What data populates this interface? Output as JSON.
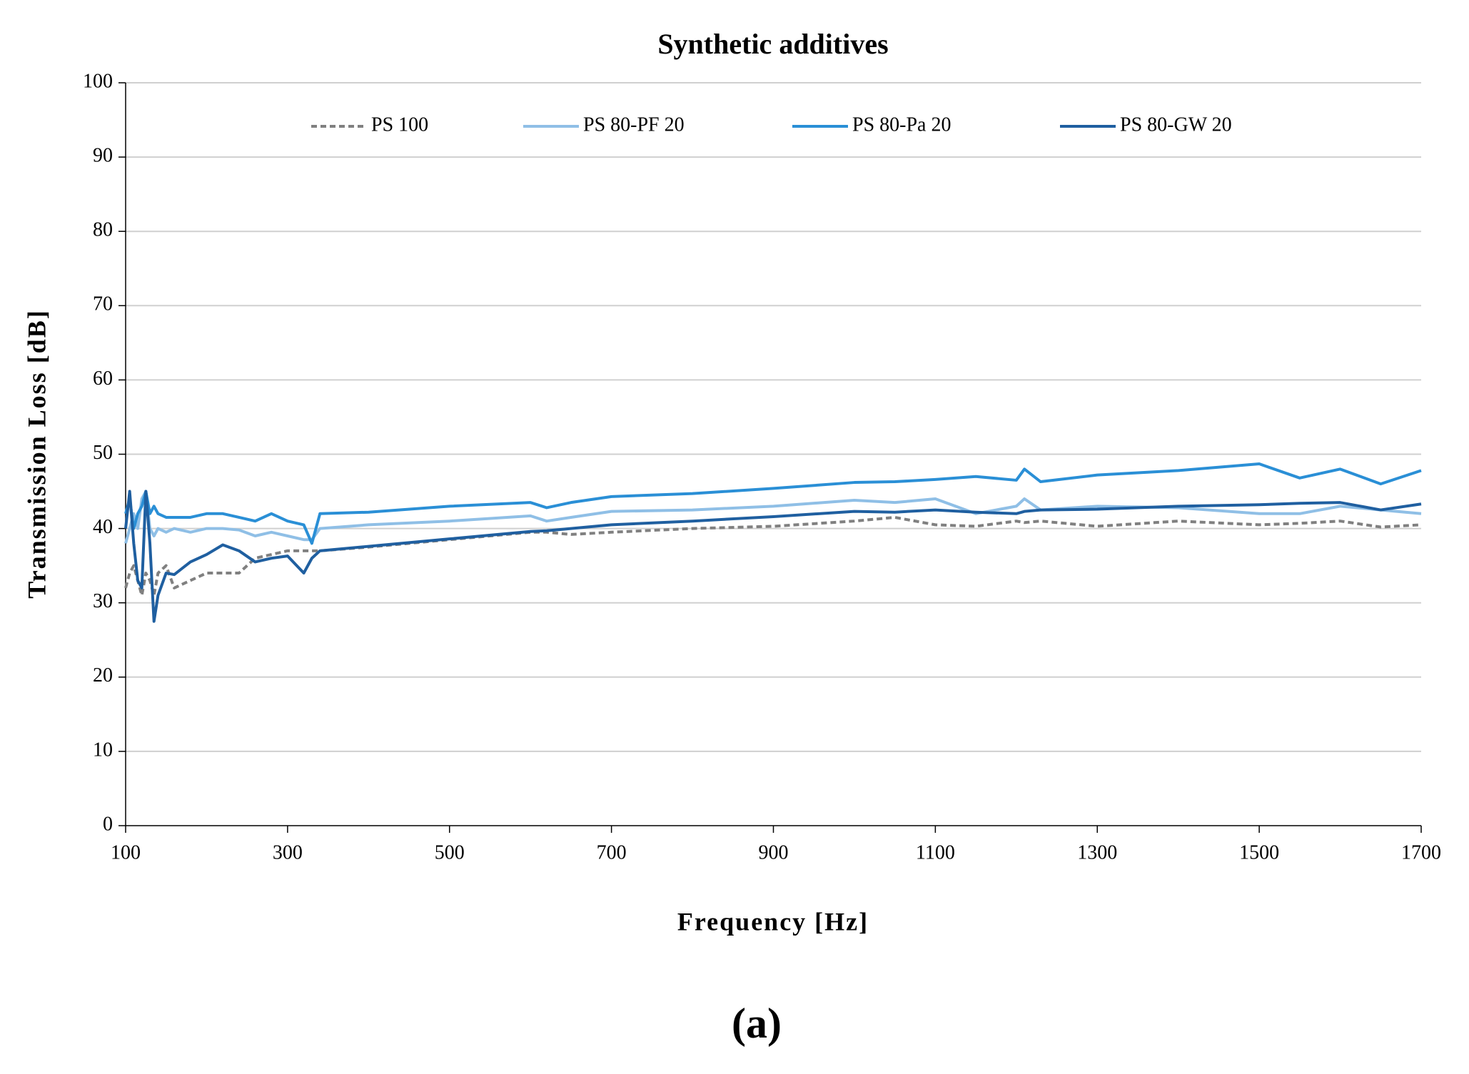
{
  "chart_data": {
    "type": "line",
    "title": "Synthetic additives",
    "x_label": "Frequency [Hz]",
    "y_label": "Transmission Loss [dB]",
    "panel_label": "(a)",
    "x": [
      100,
      105,
      110,
      115,
      120,
      125,
      130,
      135,
      140,
      150,
      160,
      180,
      200,
      220,
      240,
      260,
      280,
      300,
      320,
      330,
      340,
      400,
      500,
      600,
      620,
      650,
      700,
      800,
      900,
      1000,
      1050,
      1100,
      1150,
      1200,
      1210,
      1230,
      1300,
      1400,
      1500,
      1550,
      1600,
      1650,
      1700
    ],
    "series": [
      {
        "name": "PS 100",
        "color": "#808080",
        "dashed": true,
        "values": [
          32,
          34,
          35,
          33,
          31,
          34,
          33,
          31,
          34,
          35,
          32,
          33,
          34,
          34,
          34,
          36,
          36.5,
          37,
          37,
          37,
          37,
          37.5,
          38.5,
          39.5,
          39.5,
          39.2,
          39.5,
          40,
          40.3,
          41,
          41.5,
          40.5,
          40.3,
          41,
          40.8,
          41,
          40.3,
          41,
          40.5,
          40.7,
          41,
          40.2,
          40.5
        ]
      },
      {
        "name": "PS 80-PF 20",
        "color": "#8fbfe6",
        "dashed": false,
        "values": [
          38,
          40,
          42,
          40,
          44,
          45,
          40,
          39,
          40,
          39.5,
          40,
          39.5,
          40,
          40,
          39.8,
          39,
          39.5,
          39,
          38.5,
          38.5,
          40,
          40.5,
          41,
          41.7,
          41,
          41.5,
          42.3,
          42.5,
          43,
          43.8,
          43.5,
          44,
          42,
          43,
          44,
          42.5,
          43,
          42.8,
          42,
          42,
          43,
          42.5,
          42
        ]
      },
      {
        "name": "PS 80-Pa 20",
        "color": "#2a8fd6",
        "dashed": false,
        "values": [
          42,
          44,
          40,
          42,
          43,
          45,
          42,
          43,
          42,
          41.5,
          41.5,
          41.5,
          42,
          42,
          41.5,
          41,
          42,
          41,
          40.5,
          38,
          42,
          42.2,
          43,
          43.5,
          42.8,
          43.5,
          44.3,
          44.7,
          45.4,
          46.2,
          46.3,
          46.6,
          47,
          46.5,
          48,
          46.3,
          47.2,
          47.8,
          48.7,
          46.8,
          48,
          46,
          47.8
        ]
      },
      {
        "name": "PS 80-GW 20",
        "color": "#1f5fa0",
        "dashed": false,
        "values": [
          40,
          45,
          38,
          33,
          32,
          45,
          38,
          27.5,
          31,
          34,
          33.8,
          35.5,
          36.5,
          37.8,
          37,
          35.5,
          36,
          36.3,
          34,
          36,
          37,
          37.6,
          38.6,
          39.6,
          39.7,
          40,
          40.5,
          41,
          41.6,
          42.3,
          42.2,
          42.5,
          42.2,
          42,
          42.3,
          42.5,
          42.6,
          43,
          43.2,
          43.4,
          43.5,
          42.5,
          43.3
        ]
      }
    ],
    "xlim": [
      100,
      1700
    ],
    "xticks": [
      100,
      300,
      500,
      700,
      900,
      1100,
      1300,
      1500,
      1700
    ],
    "ylim": [
      0,
      100
    ],
    "yticks": [
      0,
      10,
      20,
      30,
      40,
      50,
      60,
      70,
      80,
      90,
      100
    ],
    "grid": true,
    "legend": "top"
  }
}
